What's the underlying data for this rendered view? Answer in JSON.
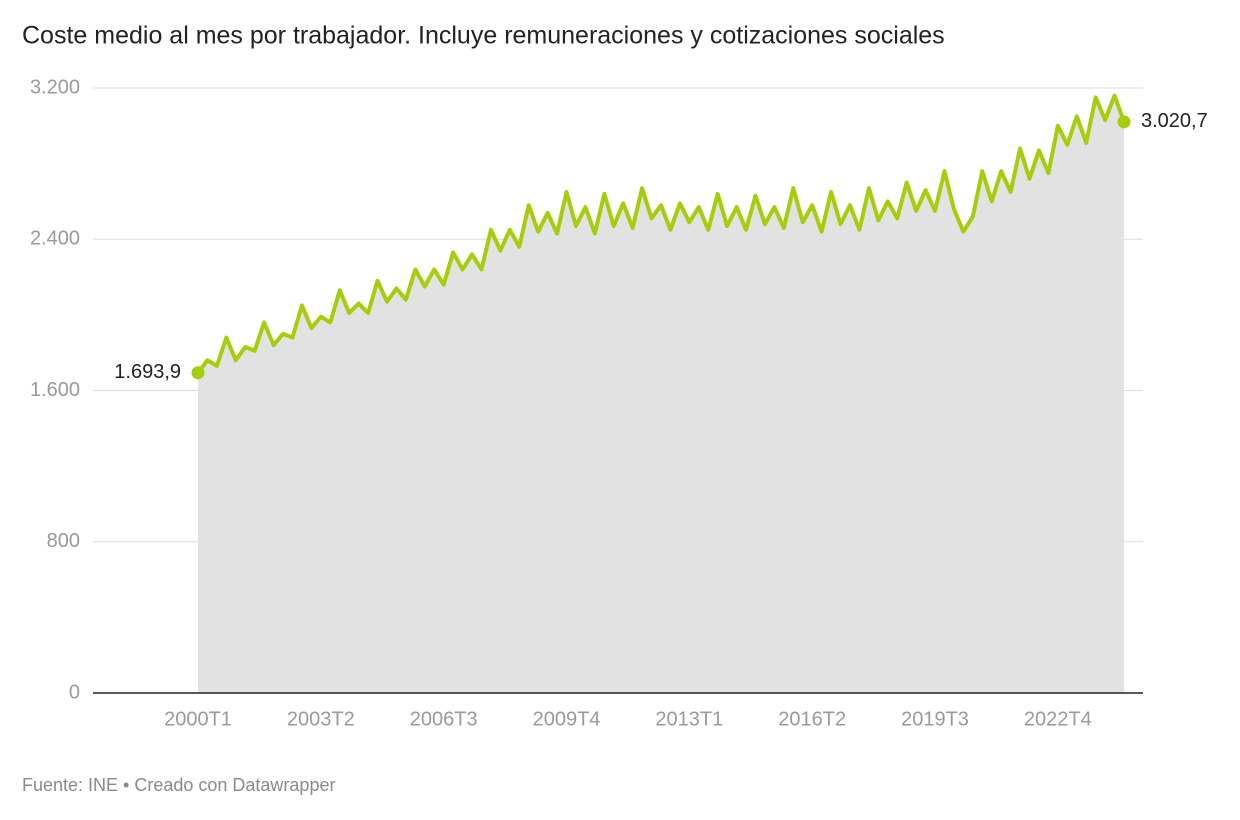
{
  "chart_data": {
    "type": "area",
    "title": "Coste medio al mes por trabajador. Incluye remuneraciones y cotizaciones sociales",
    "source": "Fuente: INE • Creado con Datawrapper",
    "categories": [
      "2000T1",
      null,
      null,
      null,
      null,
      null,
      null,
      null,
      null,
      null,
      null,
      null,
      null,
      "2003T2",
      null,
      null,
      null,
      null,
      null,
      null,
      null,
      null,
      null,
      null,
      null,
      null,
      "2006T3",
      null,
      null,
      null,
      null,
      null,
      null,
      null,
      null,
      null,
      null,
      null,
      null,
      "2009T4",
      null,
      null,
      null,
      null,
      null,
      null,
      null,
      null,
      null,
      null,
      null,
      null,
      "2013T1",
      null,
      null,
      null,
      null,
      null,
      null,
      null,
      null,
      null,
      null,
      null,
      null,
      "2016T2",
      null,
      null,
      null,
      null,
      null,
      null,
      null,
      null,
      null,
      null,
      null,
      null,
      "2019T3",
      null,
      null,
      null,
      null,
      null,
      null,
      null,
      null,
      null,
      null,
      null,
      null,
      "2022T4",
      null,
      null,
      null,
      null,
      null,
      null,
      null
    ],
    "values": [
      1693.9,
      1760,
      1730,
      1880,
      1760,
      1830,
      1810,
      1960,
      1840,
      1900,
      1880,
      2050,
      1930,
      1990,
      1960,
      2130,
      2010,
      2060,
      2010,
      2180,
      2070,
      2140,
      2080,
      2240,
      2150,
      2240,
      2160,
      2330,
      2240,
      2320,
      2240,
      2450,
      2340,
      2450,
      2360,
      2580,
      2440,
      2540,
      2430,
      2650,
      2470,
      2570,
      2430,
      2640,
      2470,
      2590,
      2460,
      2670,
      2510,
      2580,
      2450,
      2590,
      2490,
      2570,
      2450,
      2640,
      2470,
      2570,
      2450,
      2630,
      2480,
      2570,
      2460,
      2670,
      2490,
      2580,
      2440,
      2650,
      2480,
      2580,
      2450,
      2670,
      2500,
      2600,
      2510,
      2700,
      2550,
      2660,
      2550,
      2760,
      2560,
      2440,
      2520,
      2760,
      2600,
      2760,
      2650,
      2880,
      2720,
      2870,
      2750,
      3000,
      2900,
      3050,
      2910,
      3150,
      3030,
      3160,
      3020.7
    ],
    "value_labels": [
      "1.693,9",
      null,
      null,
      null,
      null,
      null,
      null,
      null,
      null,
      null,
      null,
      null,
      null,
      null,
      null,
      null,
      null,
      null,
      null,
      null,
      null,
      null,
      null,
      null,
      null,
      null,
      null,
      null,
      null,
      null,
      null,
      null,
      null,
      null,
      null,
      null,
      null,
      null,
      null,
      null,
      null,
      null,
      null,
      null,
      null,
      null,
      null,
      null,
      null,
      null,
      null,
      null,
      null,
      null,
      null,
      null,
      null,
      null,
      null,
      null,
      null,
      null,
      null,
      null,
      null,
      null,
      null,
      null,
      null,
      null,
      null,
      null,
      null,
      null,
      null,
      null,
      null,
      null,
      null,
      null,
      null,
      null,
      null,
      null,
      null,
      null,
      null,
      null,
      null,
      null,
      null,
      null,
      null,
      null,
      null,
      null,
      null,
      null,
      "3.020,7"
    ],
    "color": "#a6cd0c",
    "area_color": "#e2e2e2",
    "ylim": [
      0,
      3200
    ],
    "yticks": [
      0,
      {
        "value": 800,
        "label": "800"
      },
      {
        "value": 1600,
        "label": "1.600"
      },
      {
        "value": 2400,
        "label": "2.400"
      },
      {
        "value": 3200,
        "label": "3.200"
      }
    ],
    "grid": true
  }
}
